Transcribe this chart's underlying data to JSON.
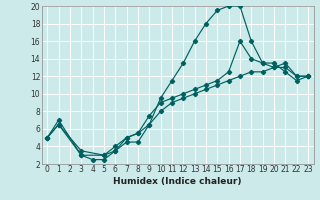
{
  "xlabel": "Humidex (Indice chaleur)",
  "bg_color": "#cceaea",
  "grid_color": "#ffffff",
  "line_color": "#006060",
  "xlim": [
    -0.5,
    23.5
  ],
  "ylim": [
    2,
    20
  ],
  "xticks": [
    0,
    1,
    2,
    3,
    4,
    5,
    6,
    7,
    8,
    9,
    10,
    11,
    12,
    13,
    14,
    15,
    16,
    17,
    18,
    19,
    20,
    21,
    22,
    23
  ],
  "yticks": [
    2,
    4,
    6,
    8,
    10,
    12,
    14,
    16,
    18,
    20
  ],
  "line1_x": [
    0,
    1,
    3,
    4,
    5,
    6,
    7,
    8,
    9,
    10,
    11,
    12,
    13,
    14,
    15,
    16,
    17,
    18,
    19,
    20,
    21,
    22,
    23
  ],
  "line1_y": [
    5,
    7,
    3,
    2.5,
    2.5,
    3.5,
    4.5,
    4.5,
    6.5,
    9.5,
    11.5,
    13.5,
    16,
    18,
    19.5,
    20,
    20,
    16,
    13.5,
    13.5,
    12.5,
    11.5,
    12
  ],
  "line2_x": [
    0,
    1,
    3,
    5,
    6,
    7,
    8,
    9,
    10,
    11,
    12,
    13,
    14,
    15,
    16,
    17,
    18,
    19,
    20,
    21,
    22,
    23
  ],
  "line2_y": [
    5,
    6.5,
    3,
    3,
    3.5,
    5,
    5.5,
    7.5,
    9,
    9.5,
    10,
    10.5,
    11,
    11.5,
    12.5,
    16,
    14,
    13.5,
    13,
    13,
    12,
    12
  ],
  "line3_x": [
    0,
    1,
    3,
    5,
    6,
    7,
    8,
    9,
    10,
    11,
    12,
    13,
    14,
    15,
    16,
    17,
    18,
    19,
    20,
    21,
    22,
    23
  ],
  "line3_y": [
    5,
    6.5,
    3.5,
    3,
    4,
    5,
    5.5,
    6.5,
    8,
    9,
    9.5,
    10,
    10.5,
    11,
    11.5,
    12,
    12.5,
    12.5,
    13,
    13.5,
    12,
    12
  ]
}
